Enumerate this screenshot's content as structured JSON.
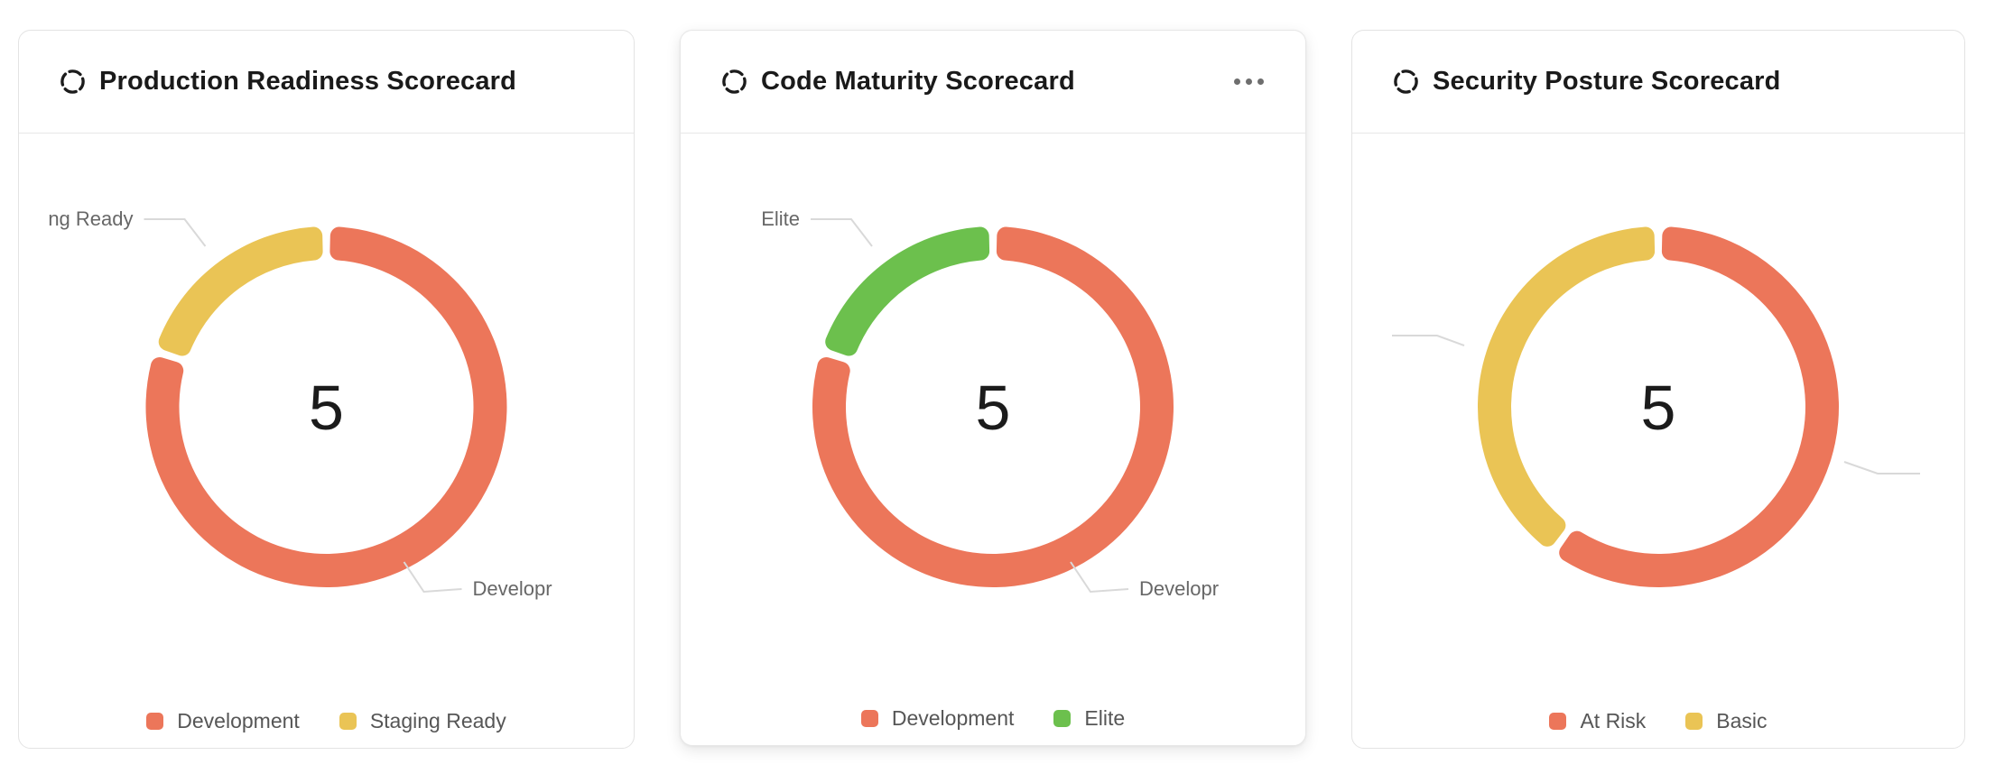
{
  "cards": [
    {
      "title": "Production Readiness Scorecard",
      "title_icon": "dashed-circle",
      "center_value": "5"
    },
    {
      "title": "Code Maturity Scorecard",
      "title_icon": "dashed-circle",
      "menu_icon": "ellipsis-horizontal",
      "center_value": "5"
    },
    {
      "title": "Security Posture Scorecard",
      "title_icon": "dashed-circle",
      "center_value": "5"
    }
  ],
  "chart_data": [
    {
      "type": "pie",
      "subtype": "donut",
      "title": "Production Readiness Scorecard",
      "center_label": "5",
      "total": 5,
      "start_angle_deg": 0,
      "direction": "clockwise",
      "legend_position": "bottom",
      "segments": [
        {
          "label": "Development",
          "value": 4,
          "color": "#ec765a"
        },
        {
          "label": "Staging Ready",
          "value": 1,
          "color": "#eac455"
        }
      ],
      "callouts": [
        {
          "side": "top-left",
          "text": "ng Ready"
        },
        {
          "side": "bottom-right",
          "text": "Developr"
        }
      ]
    },
    {
      "type": "pie",
      "subtype": "donut",
      "title": "Code Maturity Scorecard",
      "center_label": "5",
      "total": 5,
      "start_angle_deg": 0,
      "direction": "clockwise",
      "legend_position": "bottom",
      "segments": [
        {
          "label": "Development",
          "value": 4,
          "color": "#ec765a"
        },
        {
          "label": "Elite",
          "value": 1,
          "color": "#6cc04d"
        }
      ],
      "callouts": [
        {
          "side": "top-left",
          "text": "Elite"
        },
        {
          "side": "bottom-right",
          "text": "Developr"
        }
      ]
    },
    {
      "type": "pie",
      "subtype": "donut",
      "title": "Security Posture Scorecard",
      "center_label": "5",
      "total": 5,
      "start_angle_deg": 0,
      "direction": "clockwise",
      "legend_position": "bottom",
      "segments": [
        {
          "label": "At Risk",
          "value": 3,
          "color": "#ec765a"
        },
        {
          "label": "Basic",
          "value": 2,
          "color": "#eac455"
        }
      ],
      "callouts": [
        {
          "side": "mid-left",
          "text": ""
        },
        {
          "side": "mid-right",
          "text": ""
        }
      ]
    }
  ]
}
